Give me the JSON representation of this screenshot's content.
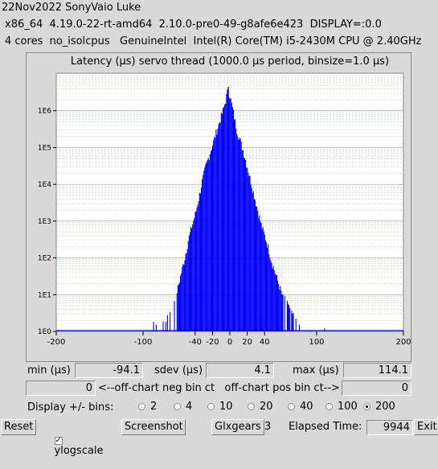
{
  "header": {
    "line1": "22Nov2022 SonyVaio Luke",
    "line2": "x86_64  4.19.0-22-rt-amd64  2.10.0-pre0-49-g8afe6e423  DISPLAY=:0.0",
    "line3": "4 cores  no_isolcpus   GenuineIntel  Intel(R) Core(TM) i5-2430M CPU @ 2.40GHz"
  },
  "chart_data": {
    "type": "bar",
    "title": "Latency (µs) servo thread (1000.0 µs period, binsize=1.0 µs)",
    "xlabel": "",
    "ylabel": "",
    "xlim": [
      -200,
      200
    ],
    "y_scale": "log",
    "ylim": [
      1,
      10000000
    ],
    "x_tick_labels": [
      "-200",
      "-100",
      "-40",
      "-20",
      "0",
      "20",
      "40",
      "100",
      "200"
    ],
    "x_ticks": [
      -200,
      -100,
      -40,
      -20,
      0,
      20,
      40,
      100,
      200
    ],
    "y_tick_labels": [
      "1E0",
      "1E1",
      "1E2",
      "1E3",
      "1E4",
      "1E5",
      "1E6"
    ],
    "grid": true,
    "color": "#0000ff",
    "series": [
      {
        "x": [
          -94,
          -90,
          -80,
          -75,
          -70,
          -65,
          -60,
          -56,
          -52,
          -48,
          -44,
          -40,
          -36,
          -32,
          -28,
          -24,
          -20,
          -16,
          -12,
          -8,
          -6,
          -4,
          -2,
          -1,
          0,
          1,
          2,
          4,
          6,
          8,
          12,
          16,
          20,
          24,
          28,
          32,
          36,
          40,
          44,
          48,
          52,
          56,
          60,
          66,
          70,
          76,
          84,
          90,
          100,
          110,
          114
        ],
        "values": [
          1,
          2,
          1,
          2,
          3,
          6,
          15,
          40,
          100,
          300,
          700,
          1500,
          4000,
          12000,
          30000,
          60000,
          120000,
          250000,
          500000,
          1000000,
          1500000,
          2500000,
          4000000,
          3000000,
          2500000,
          2000000,
          1500000,
          900000,
          500000,
          300000,
          150000,
          70000,
          30000,
          12000,
          5000,
          2000,
          800,
          400,
          200,
          80,
          40,
          20,
          10,
          6,
          4,
          2,
          1,
          1,
          1,
          1,
          1
        ]
      }
    ]
  },
  "stats": {
    "min_label": "min (µs)",
    "min_value": "-94.1",
    "sdev_label": "sdev (µs)",
    "sdev_value": "4.1",
    "max_label": "max (µs)",
    "max_value": "114.1"
  },
  "offchart": {
    "neg_value": "0",
    "label": "<--off-chart neg bin ct   off-chart pos bin ct-->",
    "pos_value": "0"
  },
  "bins": {
    "label": "Display +/- bins:",
    "options": [
      "2",
      "4",
      "10",
      "20",
      "40",
      "100",
      "200"
    ],
    "selected": "200"
  },
  "toolbar": {
    "reset": "Reset",
    "ylogscale": "ylogscale",
    "screenshot": "Screenshot",
    "glxgears": "Glxgears",
    "glx_count": "3",
    "elapsed_label": "Elapsed Time:",
    "elapsed_value": "9944",
    "exit": "Exit"
  }
}
